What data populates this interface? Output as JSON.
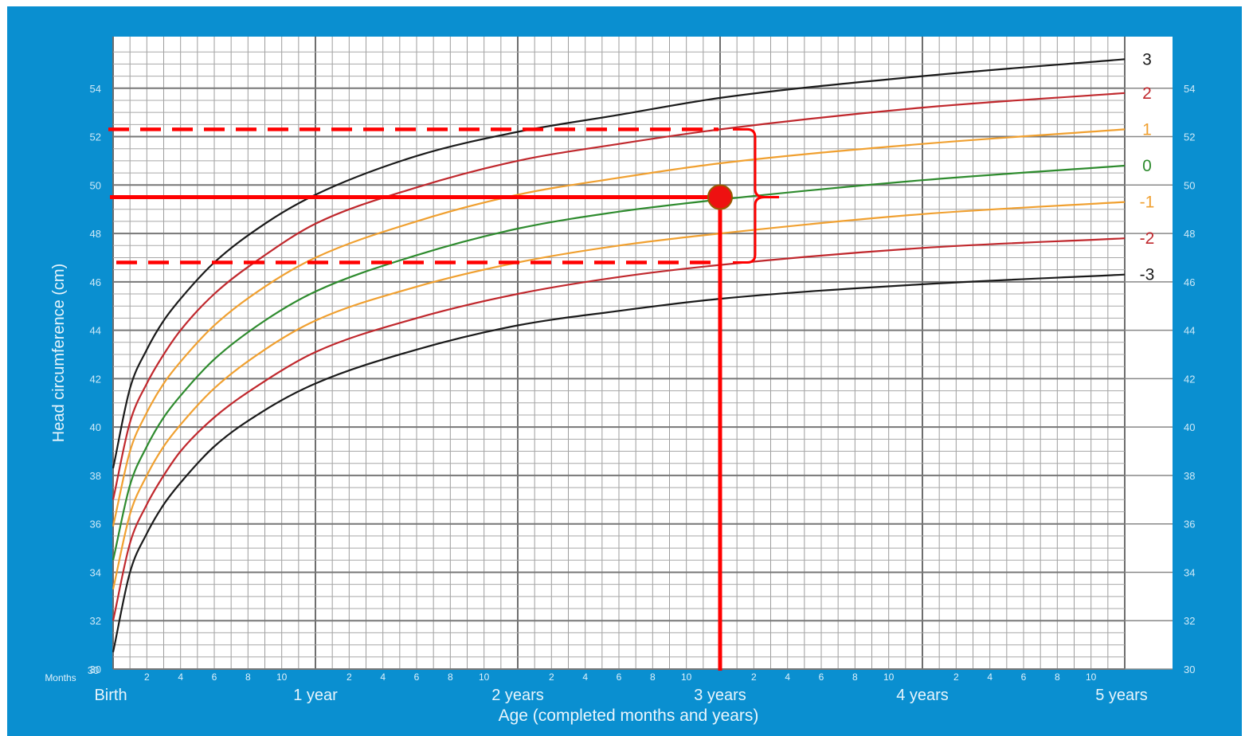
{
  "chart_data": {
    "type": "line",
    "title": "",
    "ylabel": "Head circumference (cm)",
    "xlabel": "Age (completed months and years)",
    "xlim": [
      0,
      60
    ],
    "ylim": [
      30,
      56
    ],
    "y_ticks": [
      30,
      32,
      34,
      36,
      38,
      40,
      42,
      44,
      46,
      48,
      50,
      52,
      54
    ],
    "months_label": "Months",
    "month_ticks": [
      "2",
      "4",
      "6",
      "8",
      "10"
    ],
    "year_labels": [
      "Birth",
      "1 year",
      "2 years",
      "3 years",
      "4 years",
      "5 years"
    ],
    "grid": true,
    "legend": "right",
    "x": [
      0,
      1,
      2,
      3,
      4,
      6,
      9,
      12,
      18,
      24,
      30,
      36,
      48,
      60
    ],
    "series": [
      {
        "name": "3",
        "color": "#1a1a1a",
        "values": [
          38.3,
          41.6,
          43.2,
          44.4,
          45.3,
          46.8,
          48.4,
          49.6,
          51.2,
          52.2,
          52.9,
          53.6,
          54.5,
          55.2
        ]
      },
      {
        "name": "2",
        "color": "#c0282d",
        "values": [
          37.0,
          40.2,
          41.8,
          43.0,
          44.0,
          45.5,
          47.1,
          48.4,
          49.9,
          51.0,
          51.7,
          52.3,
          53.2,
          53.8
        ]
      },
      {
        "name": "1",
        "color": "#f0a030",
        "values": [
          35.9,
          39.0,
          40.6,
          41.8,
          42.7,
          44.2,
          45.8,
          47.0,
          48.5,
          49.6,
          50.3,
          50.9,
          51.7,
          52.3
        ]
      },
      {
        "name": "0",
        "color": "#2e8b2e",
        "values": [
          34.5,
          37.6,
          39.2,
          40.4,
          41.3,
          42.8,
          44.4,
          45.6,
          47.1,
          48.2,
          48.9,
          49.4,
          50.2,
          50.8
        ]
      },
      {
        "name": "-1",
        "color": "#f0a030",
        "values": [
          33.3,
          36.4,
          38.0,
          39.2,
          40.1,
          41.6,
          43.2,
          44.4,
          45.8,
          46.8,
          47.5,
          48.0,
          48.8,
          49.3
        ]
      },
      {
        "name": "-2",
        "color": "#c0282d",
        "values": [
          32.0,
          35.2,
          36.8,
          38.0,
          39.0,
          40.4,
          41.9,
          43.1,
          44.5,
          45.5,
          46.2,
          46.7,
          47.4,
          47.8
        ]
      },
      {
        "name": "-3",
        "color": "#1a1a1a",
        "values": [
          30.7,
          34.0,
          35.6,
          36.8,
          37.7,
          39.2,
          40.7,
          41.8,
          43.2,
          44.2,
          44.8,
          45.3,
          45.9,
          46.3
        ]
      }
    ],
    "annotations": {
      "point": {
        "x": 36,
        "y": 49.5,
        "color": "#ee1111"
      },
      "upper_dashed_y": 52.3,
      "lower_dashed_y": 46.8,
      "accent_color": "#ff0000"
    }
  }
}
